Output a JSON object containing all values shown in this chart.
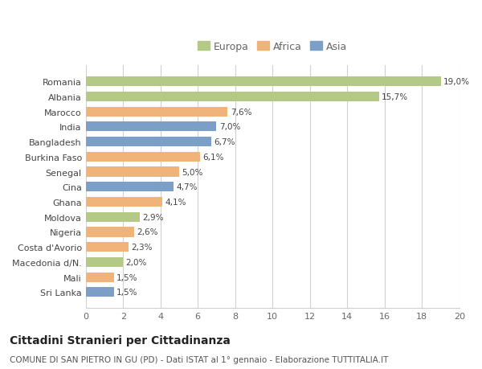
{
  "categories": [
    "Romania",
    "Albania",
    "Marocco",
    "India",
    "Bangladesh",
    "Burkina Faso",
    "Senegal",
    "Cina",
    "Ghana",
    "Moldova",
    "Nigeria",
    "Costa d'Avorio",
    "Macedonia d/N.",
    "Mali",
    "Sri Lanka"
  ],
  "values": [
    19.0,
    15.7,
    7.6,
    7.0,
    6.7,
    6.1,
    5.0,
    4.7,
    4.1,
    2.9,
    2.6,
    2.3,
    2.0,
    1.5,
    1.5
  ],
  "labels": [
    "19,0%",
    "15,7%",
    "7,6%",
    "7,0%",
    "6,7%",
    "6,1%",
    "5,0%",
    "4,7%",
    "4,1%",
    "2,9%",
    "2,6%",
    "2,3%",
    "2,0%",
    "1,5%",
    "1,5%"
  ],
  "continents": [
    "Europa",
    "Europa",
    "Africa",
    "Asia",
    "Asia",
    "Africa",
    "Africa",
    "Asia",
    "Africa",
    "Europa",
    "Africa",
    "Africa",
    "Europa",
    "Africa",
    "Asia"
  ],
  "colors": {
    "Europa": "#b5c987",
    "Africa": "#f0b47a",
    "Asia": "#7b9fc7"
  },
  "legend_order": [
    "Europa",
    "Africa",
    "Asia"
  ],
  "xlim": [
    0,
    20
  ],
  "xticks": [
    0,
    2,
    4,
    6,
    8,
    10,
    12,
    14,
    16,
    18,
    20
  ],
  "title": "Cittadini Stranieri per Cittadinanza",
  "subtitle": "COMUNE DI SAN PIETRO IN GU (PD) - Dati ISTAT al 1° gennaio - Elaborazione TUTTITALIA.IT",
  "background_color": "#ffffff",
  "grid_color": "#d0d0d0",
  "bar_height": 0.65
}
